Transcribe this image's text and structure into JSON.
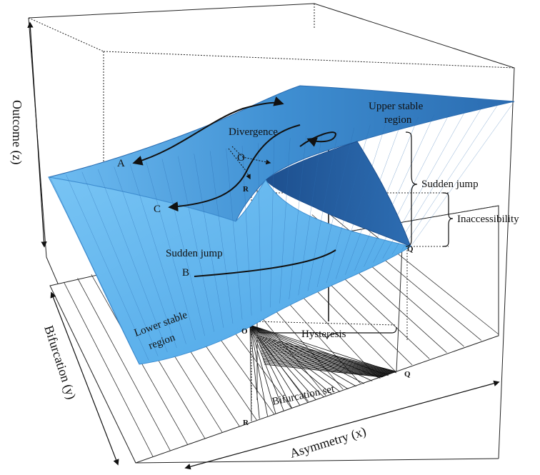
{
  "labels": {
    "upper_stable_region": [
      "Upper stable",
      "region"
    ],
    "lower_stable_region": [
      "Lower stable",
      "region"
    ],
    "divergence": "Divergence",
    "sudden_jump_right": "Sudden jump",
    "sudden_jump_left": "Sudden jump",
    "inaccessibility": "Inaccessibility",
    "hysteresis": "Hysteresis",
    "bifurcation_set": "Bifurcation set",
    "point_a": "A",
    "point_b": "B",
    "point_c": "C",
    "point_o_surface": "O",
    "point_r_surface": "R",
    "point_q_surface": "Q",
    "point_o_floor": "O",
    "point_r_floor": "R",
    "point_q_floor": "Q"
  },
  "axes": {
    "z_label": "Outcome (z)",
    "y_label": "Bifurcation (y)",
    "x_label": "Asymmetry (x)"
  },
  "colors": {
    "surface_light": "#5fb3ee",
    "surface_mid": "#3f93d6",
    "surface_dark": "#2a6bb0",
    "fold_dark": "#1f4f8c",
    "line": "#111111",
    "background": "#ffffff"
  }
}
